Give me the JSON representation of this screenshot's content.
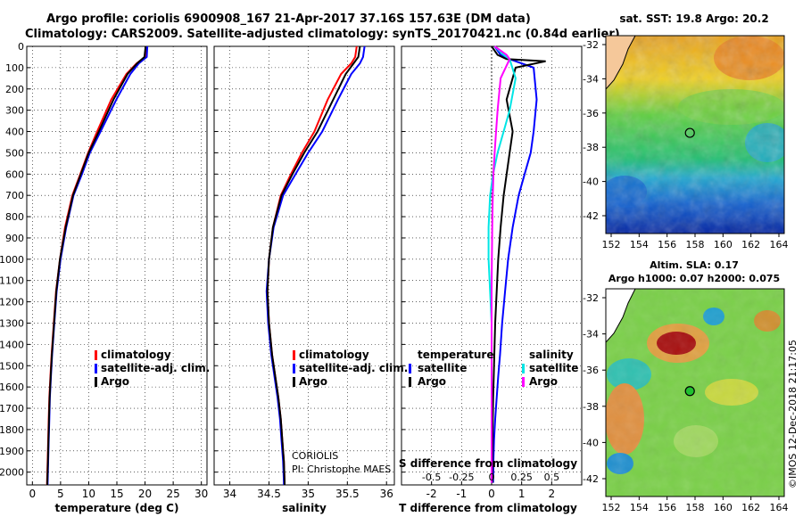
{
  "header": {
    "line1": "Argo profile: coriolis 6900908_167 21-Apr-2017 37.16S 157.63E (DM data)",
    "line2": "Climatology: CARS2009. Satellite-adjusted climatology: synTS_20170421.nc (0.84d earlier)"
  },
  "colors": {
    "climatology": "#ff0000",
    "satellite": "#0000ff",
    "argo": "#000000",
    "salinity_sat": "#00e5e5",
    "salinity_argo": "#ff00ff"
  },
  "panels": {
    "temperature": {
      "xlabel": "temperature (deg C)",
      "legend": [
        "climatology",
        "satellite-adj. clim.",
        "Argo"
      ]
    },
    "salinity": {
      "xlabel": "salinity",
      "legend": [
        "climatology",
        "satellite-adj. clim.",
        "Argo"
      ],
      "credit1": "CORIOLIS",
      "credit2": "PI: Christophe MAES"
    },
    "difference": {
      "xlabel": "T difference from climatology",
      "s_axis_label": "S difference from climatology",
      "legend_temp_title": "temperature",
      "legend_sal_title": "salinity",
      "legend_temp": [
        "satellite",
        "Argo"
      ],
      "legend_sal": [
        "satellite",
        "Argo"
      ]
    }
  },
  "maps": {
    "sst": {
      "title": "sat. SST: 19.8 Argo: 20.2"
    },
    "sla": {
      "title1": "Altim. SLA: 0.17",
      "title2": "Argo h1000: 0.07 h2000: 0.075"
    },
    "lat_ticks": [
      "-32",
      "-34",
      "-36",
      "-38",
      "-40",
      "-42"
    ],
    "lon_ticks": [
      "152",
      "154",
      "156",
      "158",
      "160",
      "162",
      "164"
    ],
    "float_marker": {
      "lon": 157.63,
      "lat": -37.16
    }
  },
  "stamp": "©IMOS 12-Dec-2018 21:17:05",
  "chart_data": [
    {
      "type": "line",
      "title": "",
      "xlabel": "temperature (deg C)",
      "ylabel": "",
      "xlim": [
        -1,
        31
      ],
      "ylim": [
        2060,
        0
      ],
      "xticks": [
        0,
        5,
        10,
        15,
        20,
        25,
        30
      ],
      "yticks": [
        0,
        100,
        200,
        300,
        400,
        500,
        600,
        700,
        800,
        900,
        1000,
        1100,
        1200,
        1300,
        1400,
        1500,
        1600,
        1700,
        1800,
        1900,
        2000
      ],
      "grid": true,
      "legend_position": "lower-middle",
      "series": [
        {
          "name": "climatology",
          "color": "#ff0000",
          "x": [
            20.2,
            20.0,
            18.5,
            16.7,
            14.0,
            11.5,
            9.9,
            8.5,
            7.1,
            5.8,
            4.9,
            4.2,
            3.8,
            3.4,
            3.2,
            3.0,
            2.9,
            2.8,
            2.7,
            2.6,
            2.6
          ],
          "y": [
            0,
            50,
            80,
            130,
            250,
            400,
            500,
            600,
            700,
            850,
            1000,
            1150,
            1300,
            1450,
            1550,
            1650,
            1750,
            1850,
            1950,
            2050,
            2060
          ]
        },
        {
          "name": "satellite-adj. clim.",
          "color": "#0000ff",
          "x": [
            20.4,
            20.3,
            18.9,
            17.4,
            14.9,
            12.1,
            10.2,
            8.8,
            7.3,
            6.0,
            5.0,
            4.3,
            3.9,
            3.5,
            3.3,
            3.1,
            3.0,
            2.9,
            2.8,
            2.7,
            2.7
          ],
          "y": [
            0,
            50,
            80,
            130,
            250,
            400,
            500,
            600,
            700,
            850,
            1000,
            1150,
            1300,
            1450,
            1550,
            1650,
            1750,
            1850,
            1950,
            2050,
            2060
          ]
        },
        {
          "name": "Argo",
          "color": "#000000",
          "x": [
            20.1,
            19.9,
            18.6,
            16.9,
            14.4,
            11.8,
            10.0,
            8.6,
            7.2,
            5.9,
            4.9,
            4.25,
            3.85,
            3.45,
            3.25,
            3.05,
            2.95,
            2.85,
            2.75,
            2.65,
            2.65
          ],
          "y": [
            0,
            50,
            80,
            130,
            250,
            400,
            500,
            600,
            700,
            850,
            1000,
            1150,
            1300,
            1450,
            1550,
            1650,
            1750,
            1850,
            1950,
            2050,
            2060
          ]
        }
      ]
    },
    {
      "type": "line",
      "title": "",
      "xlabel": "salinity",
      "ylabel": "",
      "xlim": [
        33.8,
        36.1
      ],
      "ylim": [
        2060,
        0
      ],
      "xticks": [
        34,
        34.5,
        35,
        35.5,
        36
      ],
      "grid": true,
      "legend_position": "lower-middle",
      "series": [
        {
          "name": "climatology",
          "color": "#ff0000",
          "x": [
            35.62,
            35.6,
            35.55,
            35.42,
            35.25,
            35.08,
            34.92,
            34.78,
            34.65,
            34.55,
            34.5,
            34.48,
            34.5,
            34.54,
            34.58,
            34.62,
            34.65,
            34.67,
            34.69,
            34.7,
            34.7
          ],
          "y": [
            0,
            50,
            80,
            130,
            250,
            400,
            500,
            600,
            700,
            850,
            1000,
            1150,
            1300,
            1450,
            1550,
            1650,
            1750,
            1850,
            1950,
            2050,
            2060
          ]
        },
        {
          "name": "satellite-adj. clim.",
          "color": "#0000ff",
          "x": [
            35.72,
            35.7,
            35.66,
            35.55,
            35.38,
            35.18,
            35.0,
            34.84,
            34.68,
            34.56,
            34.5,
            34.47,
            34.49,
            34.53,
            34.57,
            34.61,
            34.64,
            34.66,
            34.68,
            34.69,
            34.69
          ],
          "y": [
            0,
            50,
            80,
            130,
            250,
            400,
            500,
            600,
            700,
            850,
            1000,
            1150,
            1300,
            1450,
            1550,
            1650,
            1750,
            1850,
            1950,
            2050,
            2060
          ]
        },
        {
          "name": "Argo",
          "color": "#000000",
          "x": [
            35.66,
            35.64,
            35.58,
            35.48,
            35.32,
            35.12,
            34.95,
            34.8,
            34.66,
            34.55,
            34.5,
            34.48,
            34.5,
            34.54,
            34.58,
            34.62,
            34.65,
            34.67,
            34.69,
            34.7,
            34.7
          ],
          "y": [
            0,
            50,
            80,
            130,
            250,
            400,
            500,
            600,
            700,
            850,
            1000,
            1150,
            1300,
            1450,
            1550,
            1650,
            1750,
            1850,
            1950,
            2050,
            2060
          ]
        }
      ]
    },
    {
      "type": "line",
      "title": "",
      "xlabel": "T difference from climatology",
      "ylabel": "",
      "xlim": [
        -3,
        3
      ],
      "ylim": [
        2060,
        0
      ],
      "xticks": [
        -2,
        -1,
        0,
        1,
        2
      ],
      "s_xticks": [
        "-0.5",
        "-0.25",
        "0",
        "0.25",
        "0.5"
      ],
      "grid": true,
      "legend_position": "lower-middle",
      "series": [
        {
          "name": "temperature satellite",
          "color": "#0000ff",
          "x": [
            0.1,
            0.3,
            0.6,
            1.4,
            1.5,
            1.4,
            1.3,
            1.1,
            0.9,
            0.7,
            0.55,
            0.45,
            0.35,
            0.28,
            0.22,
            0.17,
            0.12,
            0.08,
            0.06,
            0.05
          ],
          "y": [
            0,
            40,
            60,
            100,
            250,
            400,
            500,
            600,
            700,
            850,
            1000,
            1150,
            1300,
            1450,
            1550,
            1650,
            1750,
            1850,
            1950,
            2050
          ]
        },
        {
          "name": "temperature Argo",
          "color": "#000000",
          "x": [
            0,
            0.2,
            0.5,
            1.8,
            0.8,
            0.5,
            0.7,
            0.6,
            0.4,
            0.3,
            0.22,
            0.17,
            0.12,
            0.09,
            0.07,
            0.05,
            0.04,
            0.03,
            0.02,
            0.02
          ],
          "y": [
            0,
            40,
            60,
            70,
            100,
            250,
            400,
            500,
            700,
            850,
            1000,
            1150,
            1300,
            1450,
            1550,
            1650,
            1750,
            1850,
            1950,
            2050
          ]
        },
        {
          "name": "salinity satellite",
          "color": "#00e5e5",
          "x": [
            0.1,
            0.4,
            0.6,
            0.8,
            0.6,
            0.4,
            0.2,
            0.05,
            -0.05,
            -0.1,
            -0.1,
            -0.05,
            0,
            0,
            0,
            0,
            0,
            0,
            0,
            0
          ],
          "y": [
            0,
            40,
            60,
            150,
            300,
            400,
            500,
            600,
            700,
            850,
            1000,
            1150,
            1300,
            1450,
            1550,
            1650,
            1750,
            1850,
            1950,
            2050
          ]
        },
        {
          "name": "salinity Argo",
          "color": "#ff00ff",
          "x": [
            0.1,
            0.5,
            0.6,
            0.3,
            0.2,
            0.15,
            0.1,
            0.06,
            0.04,
            0.02,
            0.01,
            0,
            0,
            0,
            0,
            0,
            0,
            0,
            0,
            0
          ],
          "y": [
            0,
            40,
            60,
            150,
            300,
            400,
            500,
            600,
            700,
            850,
            1000,
            1150,
            1300,
            1450,
            1550,
            1650,
            1750,
            1850,
            1950,
            2050
          ]
        }
      ]
    }
  ]
}
